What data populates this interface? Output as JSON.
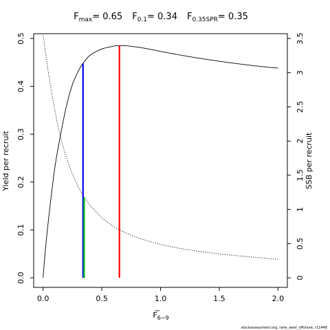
{
  "chart_data": {
    "type": "line",
    "title": {
      "fmax_label": "F",
      "fmax_sub": "max",
      "fmax_value": "= 0.65",
      "f01_label": "F",
      "f01_sub": "0.1",
      "f01_value": "= 0.34",
      "f35_label": "F",
      "f35_sub": "0.35SPR",
      "f35_value": "= 0.35"
    },
    "xlabel": "F",
    "xlabel_sub": "6−9",
    "ylabel": "Yield per recruit",
    "ylabel_right": "SSB per recruit",
    "xlim": [
      0,
      2
    ],
    "ylim": [
      0,
      0.5
    ],
    "ylim_right": [
      0,
      3.5
    ],
    "x_ticks": [
      0,
      0.5,
      1,
      1.5,
      2
    ],
    "x_tick_labels": [
      "0.0",
      "0.5",
      "1.0",
      "1.5",
      "2.0"
    ],
    "y_ticks": [
      0,
      0.1,
      0.2,
      0.3,
      0.4,
      0.5
    ],
    "y_tick_labels": [
      "0.0",
      "0.1",
      "0.2",
      "0.3",
      "0.4",
      "0.5"
    ],
    "y_right_ticks": [
      0,
      0.5,
      1,
      1.5,
      2,
      2.5,
      3,
      3.5
    ],
    "y_right_tick_labels": [
      "0",
      "0.5",
      "1",
      "1.5",
      "2",
      "2.5",
      "3",
      "3.5"
    ],
    "series": [
      {
        "axis": "left",
        "style": "solid",
        "x": [
          0,
          0.02,
          0.05,
          0.1,
          0.15,
          0.2,
          0.25,
          0.3,
          0.34,
          0.4,
          0.5,
          0.6,
          0.65,
          0.7,
          0.8,
          0.9,
          1.0,
          1.2,
          1.4,
          1.6,
          1.8,
          2.0
        ],
        "y": [
          0,
          0.06,
          0.13,
          0.23,
          0.3,
          0.36,
          0.404,
          0.432,
          0.448,
          0.465,
          0.478,
          0.484,
          0.485,
          0.485,
          0.482,
          0.478,
          0.473,
          0.464,
          0.456,
          0.449,
          0.443,
          0.438
        ]
      },
      {
        "axis": "right",
        "style": "dotted",
        "x": [
          0,
          0.05,
          0.1,
          0.15,
          0.2,
          0.25,
          0.3,
          0.35,
          0.4,
          0.5,
          0.6,
          0.65,
          0.8,
          1.0,
          1.2,
          1.5,
          1.8,
          2.0
        ],
        "y": [
          3.55,
          2.95,
          2.45,
          2.05,
          1.75,
          1.52,
          1.33,
          1.18,
          1.06,
          0.88,
          0.75,
          0.7,
          0.59,
          0.49,
          0.42,
          0.35,
          0.3,
          0.27
        ]
      }
    ],
    "reference_lines": [
      {
        "name": "F0.1",
        "x": 0.34,
        "color": "#0000ff",
        "y_top": 0.448
      },
      {
        "name": "F0.35SPR",
        "x": 0.35,
        "color": "#00cc00",
        "y_top": 0.168
      },
      {
        "name": "Fmax",
        "x": 0.65,
        "color": "#ff0000",
        "y_top": 0.485
      }
    ]
  },
  "footer": "stockassessment.org, rahe_west_offshore, r11448"
}
